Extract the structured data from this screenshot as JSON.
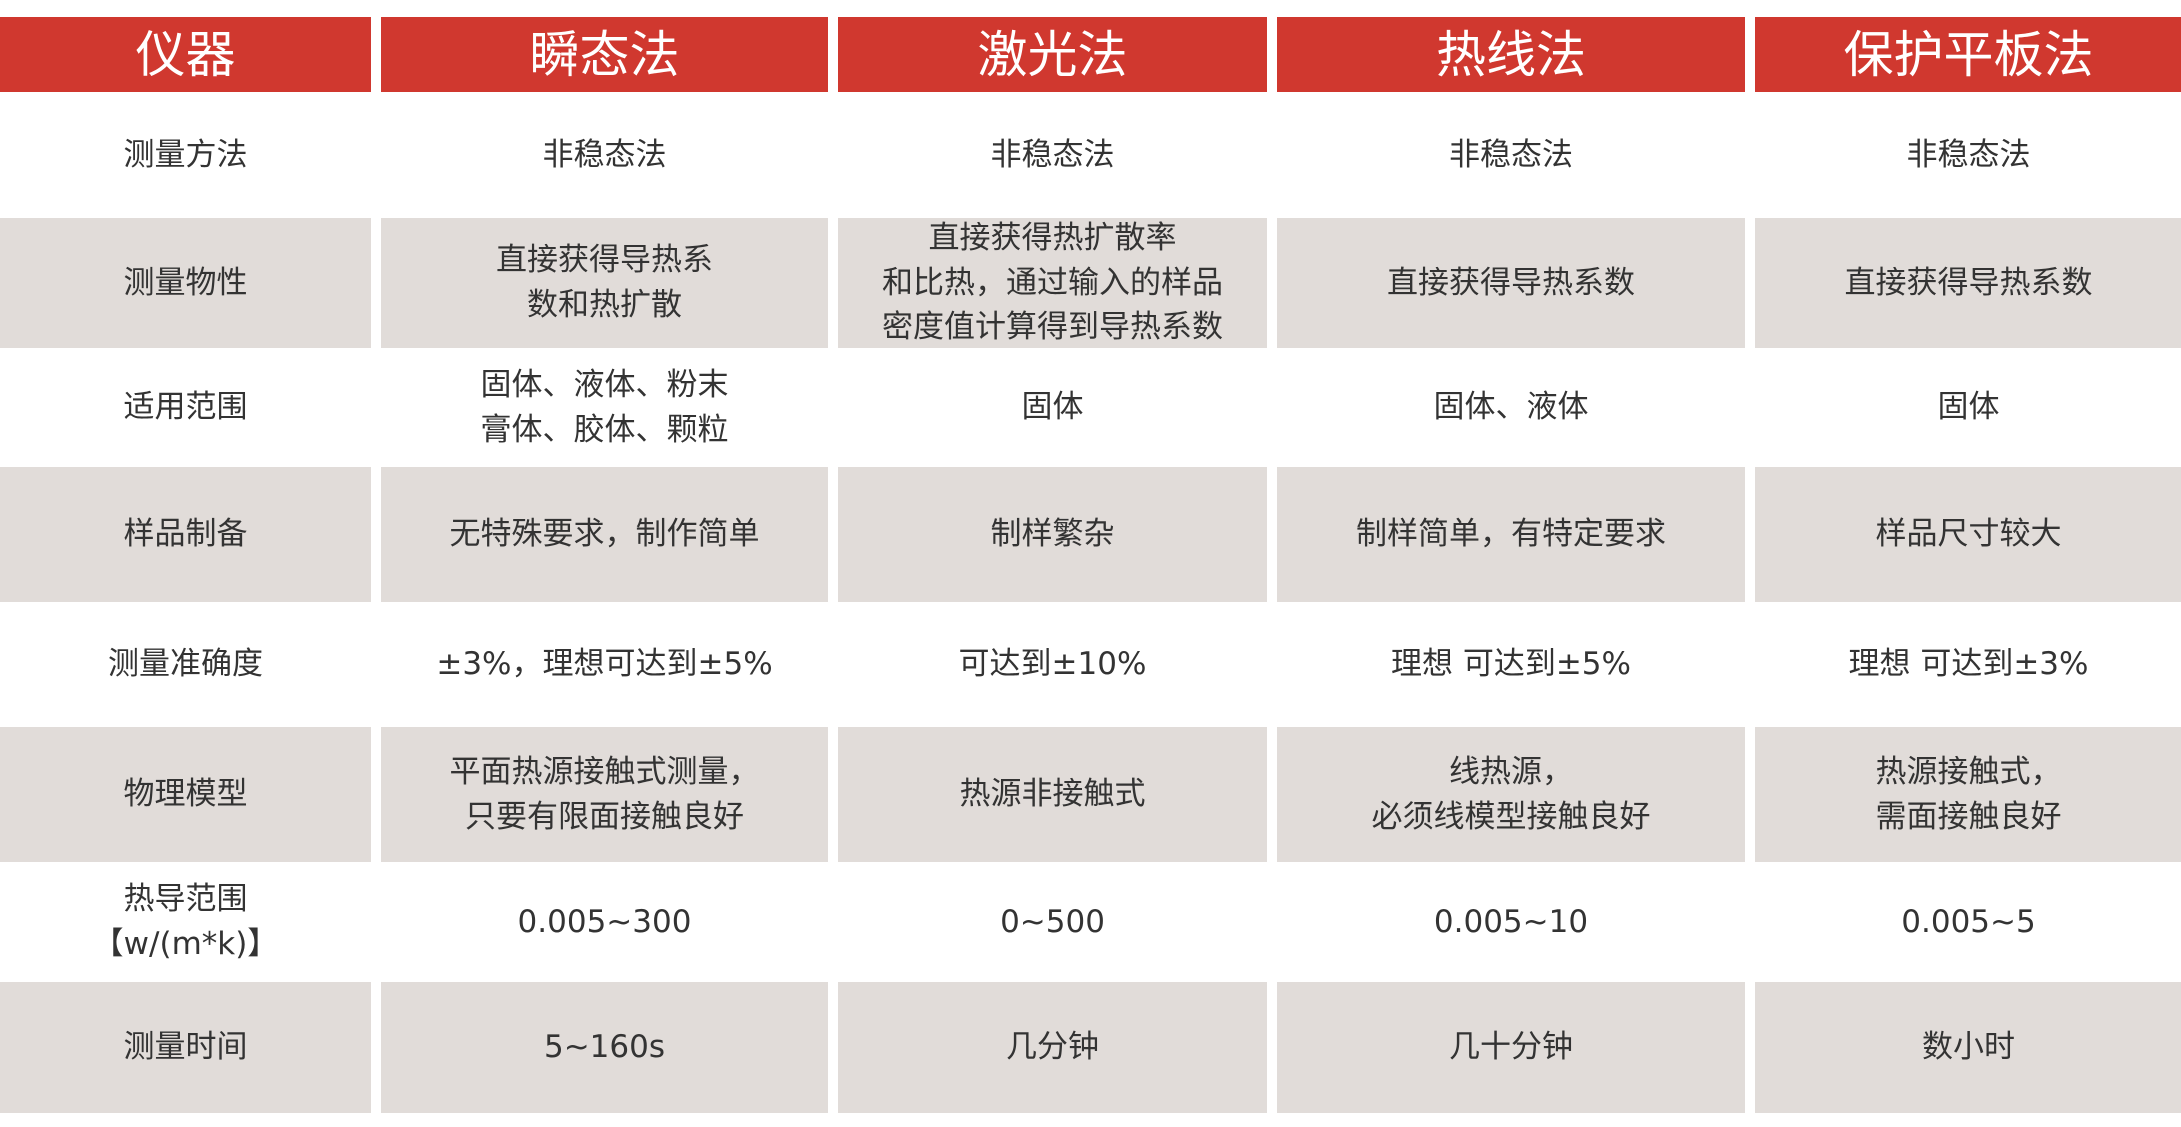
{
  "colors": {
    "header_bg": "#d0382f",
    "header_text": "#ffffff",
    "stripe_bg": "#e1dcd9",
    "text": "#333333"
  },
  "header": [
    "仪器",
    "瞬态法",
    "激光法",
    "热线法",
    "保护平板法"
  ],
  "rows": [
    {
      "cells": [
        "测量方法",
        "非稳态法",
        "非稳态法",
        "非稳态法",
        "非稳态法"
      ]
    },
    {
      "cells": [
        "测量物性",
        "直接获得导热系\n数和热扩散",
        "直接获得热扩散率\n和比热，通过输入的样品\n密度值计算得到导热系数",
        "直接获得导热系数",
        "直接获得导热系数"
      ]
    },
    {
      "cells": [
        "适用范围",
        "固体、液体、粉末\n膏体、胶体、颗粒",
        "固体",
        "固体、液体",
        "固体"
      ]
    },
    {
      "cells": [
        "样品制备",
        "无特殊要求，制作简单",
        "制样繁杂",
        "制样简单，有特定要求",
        "样品尺寸较大"
      ]
    },
    {
      "cells": [
        "测量准确度",
        "±3%，理想可达到±5%",
        "可达到±10%",
        "理想 可达到±5%",
        "理想 可达到±3%"
      ]
    },
    {
      "cells": [
        "物理模型",
        "平面热源接触式测量，\n只要有限面接触良好",
        "热源非接触式",
        "线热源，\n必须线模型接触良好",
        "热源接触式，\n需面接触良好"
      ]
    },
    {
      "cells": [
        "热导范围\n【w/(m*k)】",
        "0.005~300",
        "0~500",
        "0.005~10",
        "0.005~5"
      ]
    },
    {
      "cells": [
        "测量时间",
        "5~160s",
        "几分钟",
        "几十分钟",
        "数小时"
      ]
    }
  ]
}
